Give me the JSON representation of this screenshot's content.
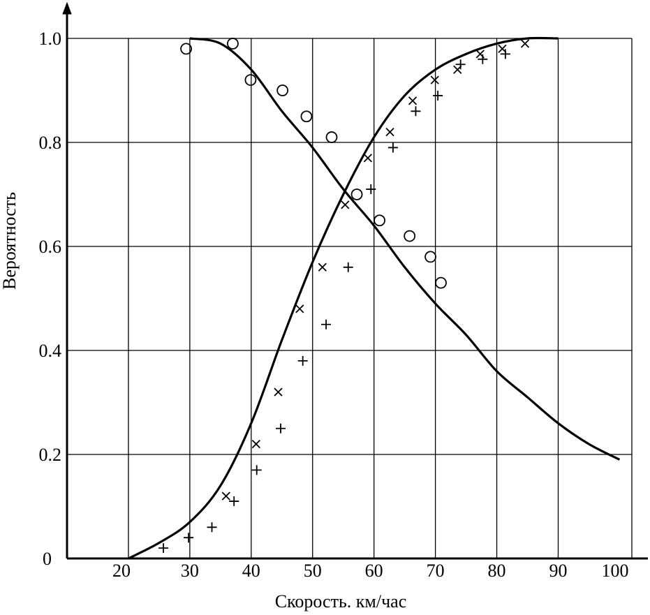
{
  "chart_data": {
    "type": "scatter",
    "xlabel": "Скорость. км/час",
    "ylabel": "Вероятность",
    "x_ticks": [
      {
        "value": 20,
        "label": "20"
      },
      {
        "value": 30,
        "label": "30"
      },
      {
        "value": 40,
        "label": "40"
      },
      {
        "value": 50,
        "label": "50"
      },
      {
        "value": 60,
        "label": "60"
      },
      {
        "value": 70,
        "label": "70"
      },
      {
        "value": 80,
        "label": "80"
      },
      {
        "value": 90,
        "label": "90"
      },
      {
        "value": 100,
        "label": "100"
      }
    ],
    "y_ticks": [
      {
        "value": 0,
        "label": "0"
      },
      {
        "value": 0.2,
        "label": "0.2"
      },
      {
        "value": 0.4,
        "label": "0.4"
      },
      {
        "value": 0.6,
        "label": "0.6"
      },
      {
        "value": 0.8,
        "label": "0.8"
      },
      {
        "value": 1.0,
        "label": "1.0"
      }
    ],
    "xlim": [
      10,
      102
    ],
    "ylim": [
      0,
      1.0
    ],
    "grid": true,
    "series": [
      {
        "marker": "circle",
        "points": [
          {
            "x": 29.4,
            "y": 0.98
          },
          {
            "x": 37.0,
            "y": 0.99
          },
          {
            "x": 39.9,
            "y": 0.92
          },
          {
            "x": 45.1,
            "y": 0.9
          },
          {
            "x": 49.0,
            "y": 0.85
          },
          {
            "x": 53.1,
            "y": 0.81
          },
          {
            "x": 57.2,
            "y": 0.7
          },
          {
            "x": 60.9,
            "y": 0.65
          },
          {
            "x": 65.8,
            "y": 0.62
          },
          {
            "x": 69.2,
            "y": 0.58
          },
          {
            "x": 70.9,
            "y": 0.53
          }
        ]
      },
      {
        "marker": "x",
        "points": [
          {
            "x": 35.9,
            "y": 0.12
          },
          {
            "x": 40.8,
            "y": 0.22
          },
          {
            "x": 44.4,
            "y": 0.32
          },
          {
            "x": 47.9,
            "y": 0.48
          },
          {
            "x": 51.6,
            "y": 0.56
          },
          {
            "x": 55.3,
            "y": 0.68
          },
          {
            "x": 59.0,
            "y": 0.77
          },
          {
            "x": 62.6,
            "y": 0.82
          },
          {
            "x": 66.3,
            "y": 0.88
          },
          {
            "x": 69.9,
            "y": 0.92
          },
          {
            "x": 73.6,
            "y": 0.94
          },
          {
            "x": 77.3,
            "y": 0.97
          },
          {
            "x": 80.9,
            "y": 0.98
          },
          {
            "x": 84.6,
            "y": 0.99
          }
        ]
      },
      {
        "marker": "plus",
        "points": [
          {
            "x": 25.7,
            "y": 0.02
          },
          {
            "x": 29.8,
            "y": 0.04
          },
          {
            "x": 33.6,
            "y": 0.06
          },
          {
            "x": 37.2,
            "y": 0.11
          },
          {
            "x": 40.9,
            "y": 0.17
          },
          {
            "x": 44.8,
            "y": 0.25
          },
          {
            "x": 48.4,
            "y": 0.38
          },
          {
            "x": 52.2,
            "y": 0.45
          },
          {
            "x": 55.8,
            "y": 0.56
          },
          {
            "x": 59.5,
            "y": 0.71
          },
          {
            "x": 63.1,
            "y": 0.79
          },
          {
            "x": 66.8,
            "y": 0.86
          },
          {
            "x": 70.4,
            "y": 0.89
          },
          {
            "x": 74.1,
            "y": 0.95
          },
          {
            "x": 77.7,
            "y": 0.96
          },
          {
            "x": 81.4,
            "y": 0.97
          }
        ]
      }
    ],
    "curves": [
      {
        "shape": "decreasing",
        "points": [
          {
            "x": 30.0,
            "y": 1.0
          },
          {
            "x": 35.0,
            "y": 0.99
          },
          {
            "x": 40.0,
            "y": 0.94
          },
          {
            "x": 45.0,
            "y": 0.86
          },
          {
            "x": 50.0,
            "y": 0.79
          },
          {
            "x": 55.0,
            "y": 0.71
          },
          {
            "x": 60.0,
            "y": 0.64
          },
          {
            "x": 65.0,
            "y": 0.56
          },
          {
            "x": 70.0,
            "y": 0.49
          },
          {
            "x": 75.0,
            "y": 0.43
          },
          {
            "x": 80.0,
            "y": 0.36
          },
          {
            "x": 85.0,
            "y": 0.31
          },
          {
            "x": 90.0,
            "y": 0.26
          },
          {
            "x": 95.0,
            "y": 0.22
          },
          {
            "x": 100.0,
            "y": 0.19
          }
        ]
      },
      {
        "shape": "increasing",
        "points": [
          {
            "x": 20.0,
            "y": 0.0
          },
          {
            "x": 25.0,
            "y": 0.03
          },
          {
            "x": 30.0,
            "y": 0.07
          },
          {
            "x": 35.0,
            "y": 0.14
          },
          {
            "x": 40.0,
            "y": 0.26
          },
          {
            "x": 45.0,
            "y": 0.42
          },
          {
            "x": 50.0,
            "y": 0.57
          },
          {
            "x": 55.0,
            "y": 0.7
          },
          {
            "x": 60.0,
            "y": 0.81
          },
          {
            "x": 65.0,
            "y": 0.89
          },
          {
            "x": 70.0,
            "y": 0.94
          },
          {
            "x": 75.0,
            "y": 0.97
          },
          {
            "x": 80.0,
            "y": 0.99
          },
          {
            "x": 85.0,
            "y": 1.0
          },
          {
            "x": 90.0,
            "y": 1.0
          }
        ]
      }
    ]
  }
}
